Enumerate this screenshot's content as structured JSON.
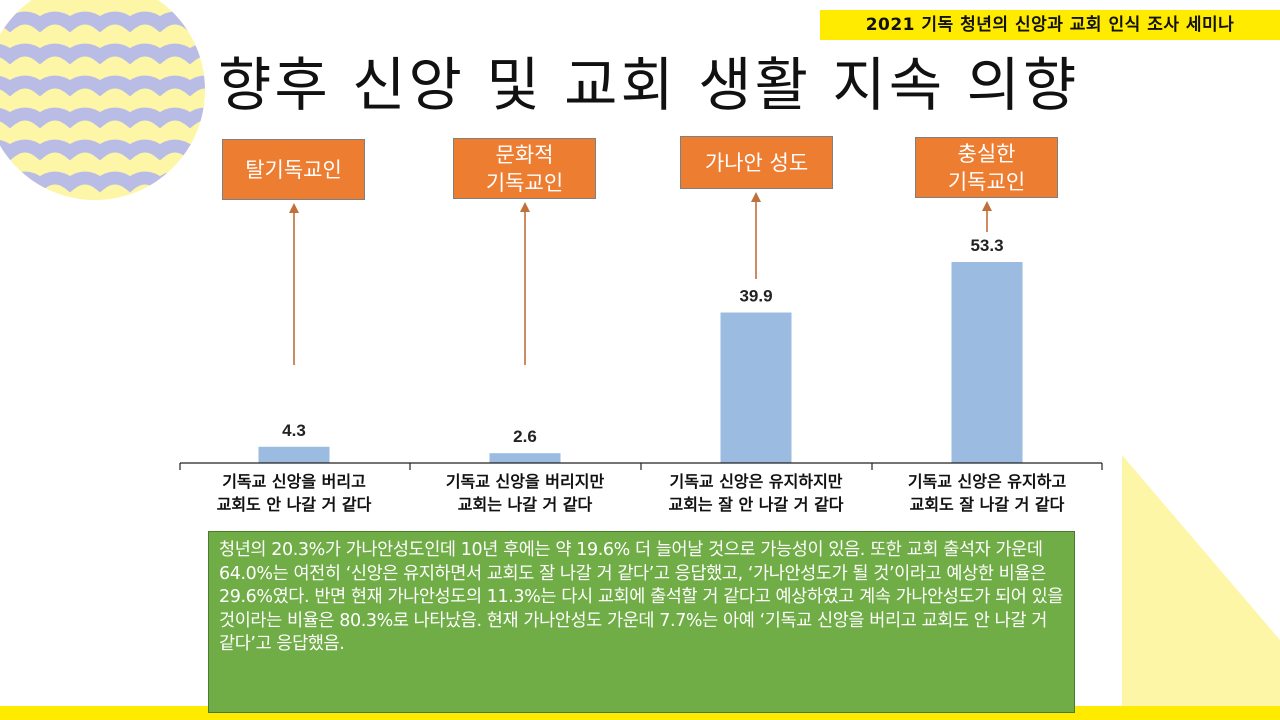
{
  "header": {
    "seminar_badge": "2021 기독 청년의 신앙과 교회 인식 조사 세미나",
    "title": "향후 신앙 및 교회 생활 지속 의향"
  },
  "colors": {
    "bar": "#9bbbe0",
    "category_box": "#ed7d31",
    "arrow": "#c0703a",
    "summary_box": "#70ad47",
    "badge": "#ffeb00",
    "wave": "#b9bde6",
    "wave_background": "#fdf6a7",
    "triangle": "#fdf6a7"
  },
  "category_boxes": [
    {
      "label": "탈기독교인"
    },
    {
      "label": "문화적\n기독교인"
    },
    {
      "label": "가나안 성도"
    },
    {
      "label": "충실한\n기독교인"
    }
  ],
  "chart_data": {
    "type": "bar",
    "categories": [
      "기독교 신앙을 버리고\n교회도 안 나갈 거 같다",
      "기독교 신앙을 버리지만\n교회는 나갈 거 같다",
      "기독교 신앙은 유지하지만\n교회는 잘 안 나갈 거 같다",
      "기독교 신앙은 유지하고\n교회도 잘 나갈 거 같다"
    ],
    "values": [
      4.3,
      2.6,
      39.9,
      53.3
    ],
    "data_labels": [
      "4.3",
      "2.6",
      "39.9",
      "53.3"
    ],
    "ylim": [
      0,
      60
    ],
    "grid": false,
    "legend": "none",
    "xlabel": "",
    "ylabel": ""
  },
  "summary": {
    "text": "청년의 20.3%가 가나안성도인데 10년 후에는 약 19.6% 더 늘어날 것으로 가능성이 있음. 또한 교회 출석자 가운데 64.0%는 여전히 ‘신앙은 유지하면서 교회도 잘 나갈 거 같다’고 응답했고, ‘가나안성도가 될 것’이라고 예상한 비율은 29.6%였다. 반면 현재 가나안성도의 11.3%는 다시 교회에 출석할 거 같다고 예상하였고 계속 가나안성도가 되어 있을 것이라는 비율은 80.3%로 나타났음. 현재 가나안성도 가운데 7.7%는 아예 ‘기독교 신앙을 버리고 교회도 안 나갈 거 같다’고 응답했음."
  }
}
